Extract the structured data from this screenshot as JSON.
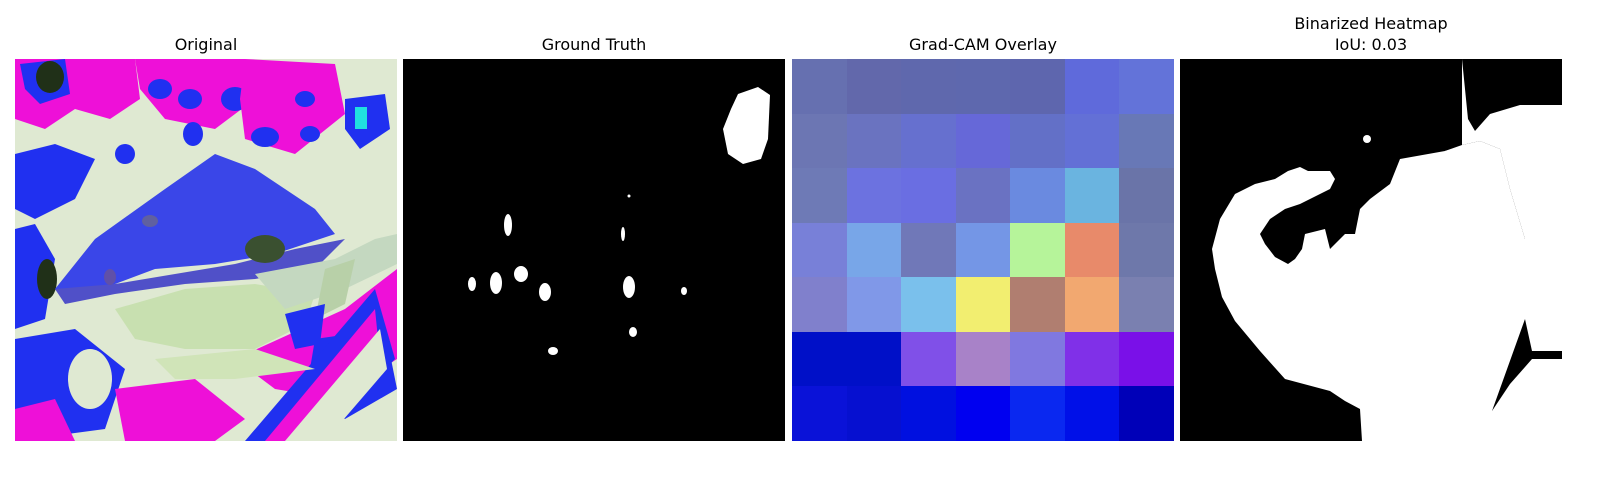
{
  "panels": [
    {
      "title": "Original"
    },
    {
      "title": "Ground Truth"
    },
    {
      "title": "Grad-CAM Overlay"
    },
    {
      "title": "Binarized Heatmap",
      "subtitle": "IoU: 0.03"
    }
  ],
  "gradcam_grid": [
    [
      "#6670b0",
      "#6268ab",
      "#5f68ad",
      "#5e68ae",
      "#5e66ae",
      "#5f6adb",
      "#6373d9"
    ],
    [
      "#6c76b3",
      "#6a73c0",
      "#6670cf",
      "#6668d8",
      "#6370c7",
      "#6370d6",
      "#6878b6"
    ],
    [
      "#6e7ab6",
      "#6c72e0",
      "#6a6ee2",
      "#6a72c2",
      "#6a8ae0",
      "#6ab4e0",
      "#6a74a8"
    ],
    [
      "#7880d8",
      "#78a6e8",
      "#7078b8",
      "#7496e6",
      "#b6f49a",
      "#e88a6a",
      "#6e78aa"
    ],
    [
      "#8080cc",
      "#8098e8",
      "#7ac0ec",
      "#f2ee70",
      "#b07e70",
      "#f2a870",
      "#7a80b0"
    ],
    [
      "#0010c8",
      "#0010c8",
      "#8050e8",
      "#a882c8",
      "#8078e0",
      "#8030e8",
      "#7a10e8"
    ],
    [
      "#0a12d8",
      "#0610d0",
      "#0010e0",
      "#0000f0",
      "#0a28f0",
      "#0010e8",
      "#0000b8"
    ]
  ]
}
